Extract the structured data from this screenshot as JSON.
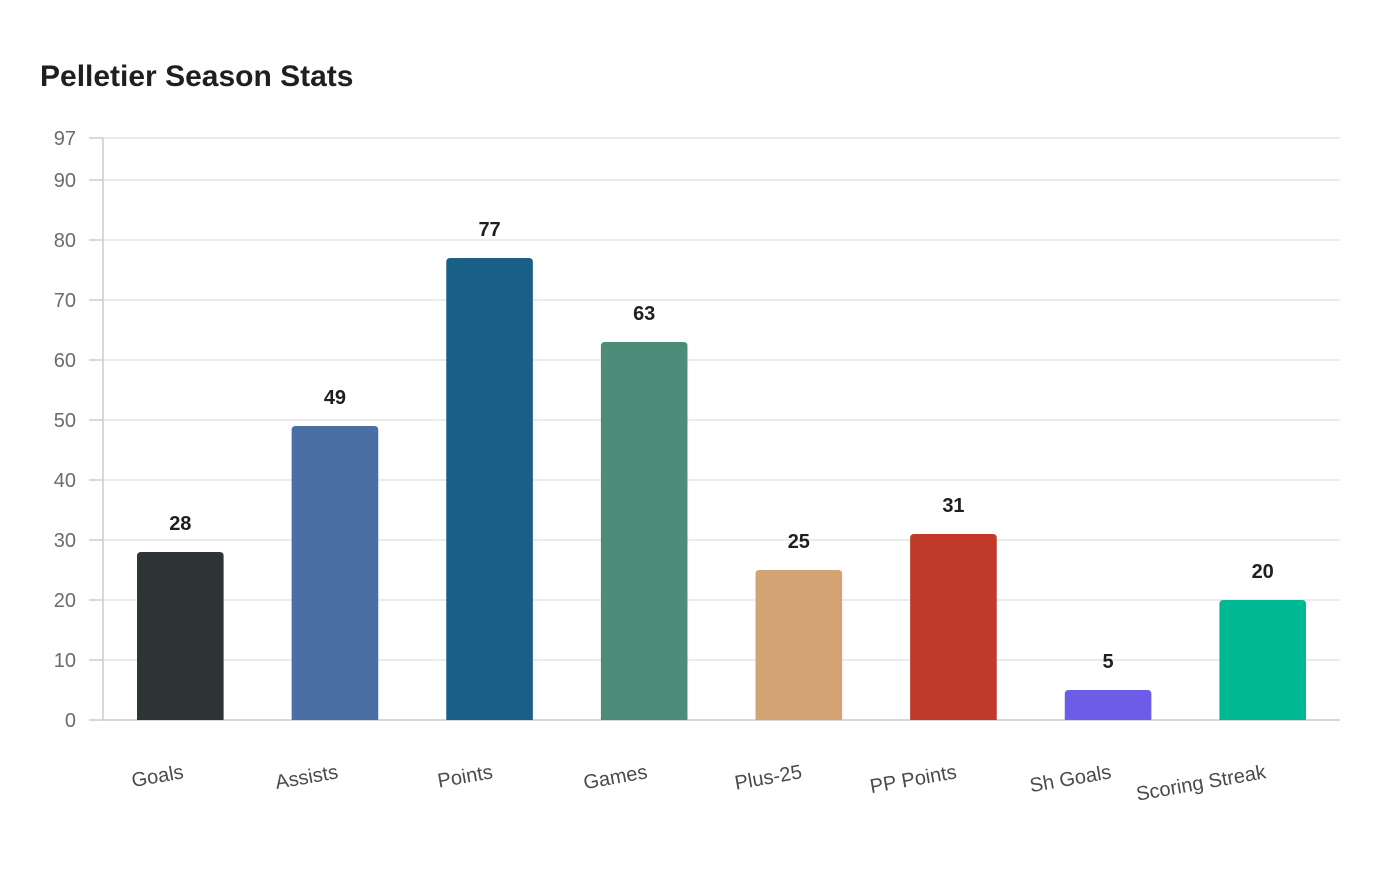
{
  "chart_data": {
    "type": "bar",
    "title": "Pelletier Season Stats",
    "xlabel": "",
    "ylabel": "",
    "categories": [
      "Goals",
      "Assists",
      "Points",
      "Games",
      "Plus-25",
      "PP Points",
      "Sh Goals",
      "Scoring Streak"
    ],
    "values": [
      28,
      49,
      77,
      63,
      25,
      31,
      5,
      20
    ],
    "colors": [
      "#2e3436",
      "#4a6fa5",
      "#1a5f85",
      "#4e8c7a",
      "#d4a373",
      "#c0392b",
      "#6c5ce7",
      "#00b894"
    ],
    "ylim": [
      0,
      97
    ],
    "yticks": [
      0,
      10,
      20,
      30,
      40,
      50,
      60,
      70,
      80,
      90,
      97
    ],
    "grid": true,
    "data_labels": true,
    "legend": "none"
  }
}
